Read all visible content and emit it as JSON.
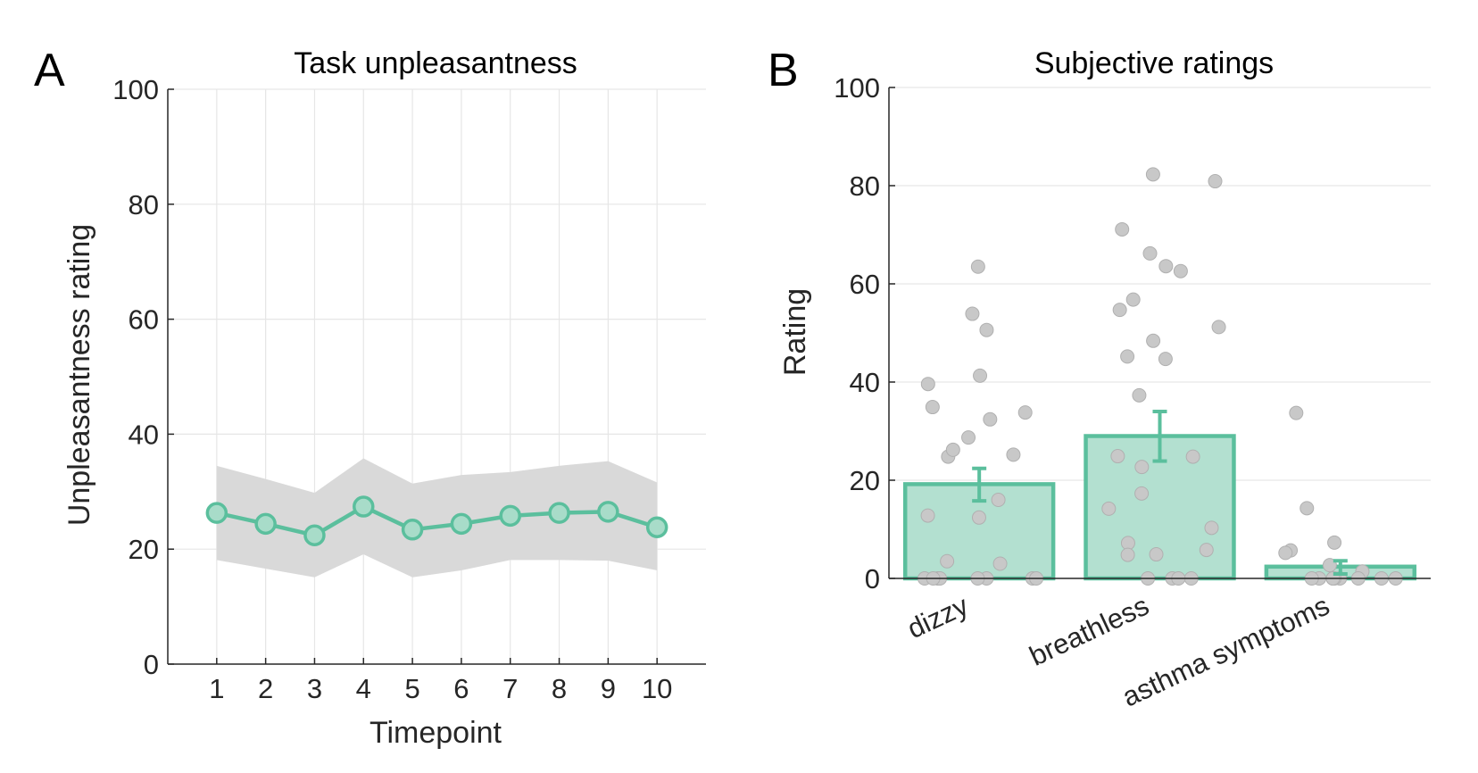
{
  "chart_data": [
    {
      "panel": "A",
      "type": "line",
      "title": "Task unpleasantness",
      "xlabel": "Timepoint",
      "ylabel": "Unpleasantness rating",
      "x": [
        1,
        2,
        3,
        4,
        5,
        6,
        7,
        8,
        9,
        10
      ],
      "xticks": [
        "1",
        "2",
        "3",
        "4",
        "5",
        "6",
        "7",
        "8",
        "9",
        "10"
      ],
      "xlim": [
        0,
        11
      ],
      "ylim": [
        0,
        100
      ],
      "yticks": [
        0,
        20,
        40,
        60,
        80,
        100
      ],
      "grid": true,
      "series": [
        {
          "values": [
            26.3,
            24.4,
            22.4,
            27.4,
            23.4,
            24.4,
            25.8,
            26.3,
            26.5,
            23.8
          ],
          "band_upper": [
            34.5,
            32.2,
            29.8,
            35.8,
            31.4,
            32.9,
            33.4,
            34.5,
            35.3,
            31.6
          ],
          "band_lower": [
            18.1,
            16.6,
            15.1,
            19.1,
            15.1,
            16.3,
            18.1,
            18.1,
            18.0,
            16.3
          ],
          "color": "#5bbf9d",
          "band_color": "#d9d9d9"
        }
      ]
    },
    {
      "panel": "B",
      "type": "bar",
      "title": "Subjective ratings",
      "xlabel": "",
      "ylabel": "Rating",
      "categories": [
        "dizzy",
        "breathless",
        "asthma symptoms"
      ],
      "values": [
        19.2,
        29.0,
        2.4
      ],
      "error": [
        [
          15.8,
          22.4
        ],
        [
          23.9,
          34.0
        ],
        [
          0.9,
          3.6
        ]
      ],
      "ylim": [
        0,
        100
      ],
      "yticks": [
        0,
        20,
        40,
        60,
        80,
        100
      ],
      "grid": true,
      "bar_color": "#5bbf9d",
      "bar_fill": "#b3e0d0",
      "point_color": "#c8c8c8",
      "points": [
        [
          63.5,
          50.6,
          34.9,
          24.8,
          53.9,
          41.3,
          39.6,
          33.8,
          32.4,
          28.7,
          26.2,
          25.2,
          16.0,
          12.8,
          12.4,
          3.5,
          3.0,
          0,
          0,
          0,
          0,
          0,
          0,
          0,
          0
        ],
        [
          82.3,
          80.9,
          71.1,
          66.2,
          63.6,
          62.6,
          56.8,
          54.7,
          51.2,
          48.4,
          45.2,
          44.7,
          37.3,
          24.9,
          24.8,
          22.7,
          17.3,
          14.2,
          10.3,
          7.2,
          5.8,
          4.9,
          4.8,
          0,
          0,
          0,
          0
        ],
        [
          33.7,
          14.3,
          7.3,
          5.7,
          5.2,
          2.7,
          1.4,
          0,
          0,
          0,
          0,
          0,
          0,
          0,
          0,
          0,
          0
        ]
      ]
    }
  ],
  "panels": [
    {
      "letter": "A",
      "title": "Task unpleasantness",
      "xlabel": "Timepoint",
      "ylabel": "Unpleasantness rating"
    },
    {
      "letter": "B",
      "title": "Subjective ratings",
      "ylabel": "Rating"
    }
  ]
}
